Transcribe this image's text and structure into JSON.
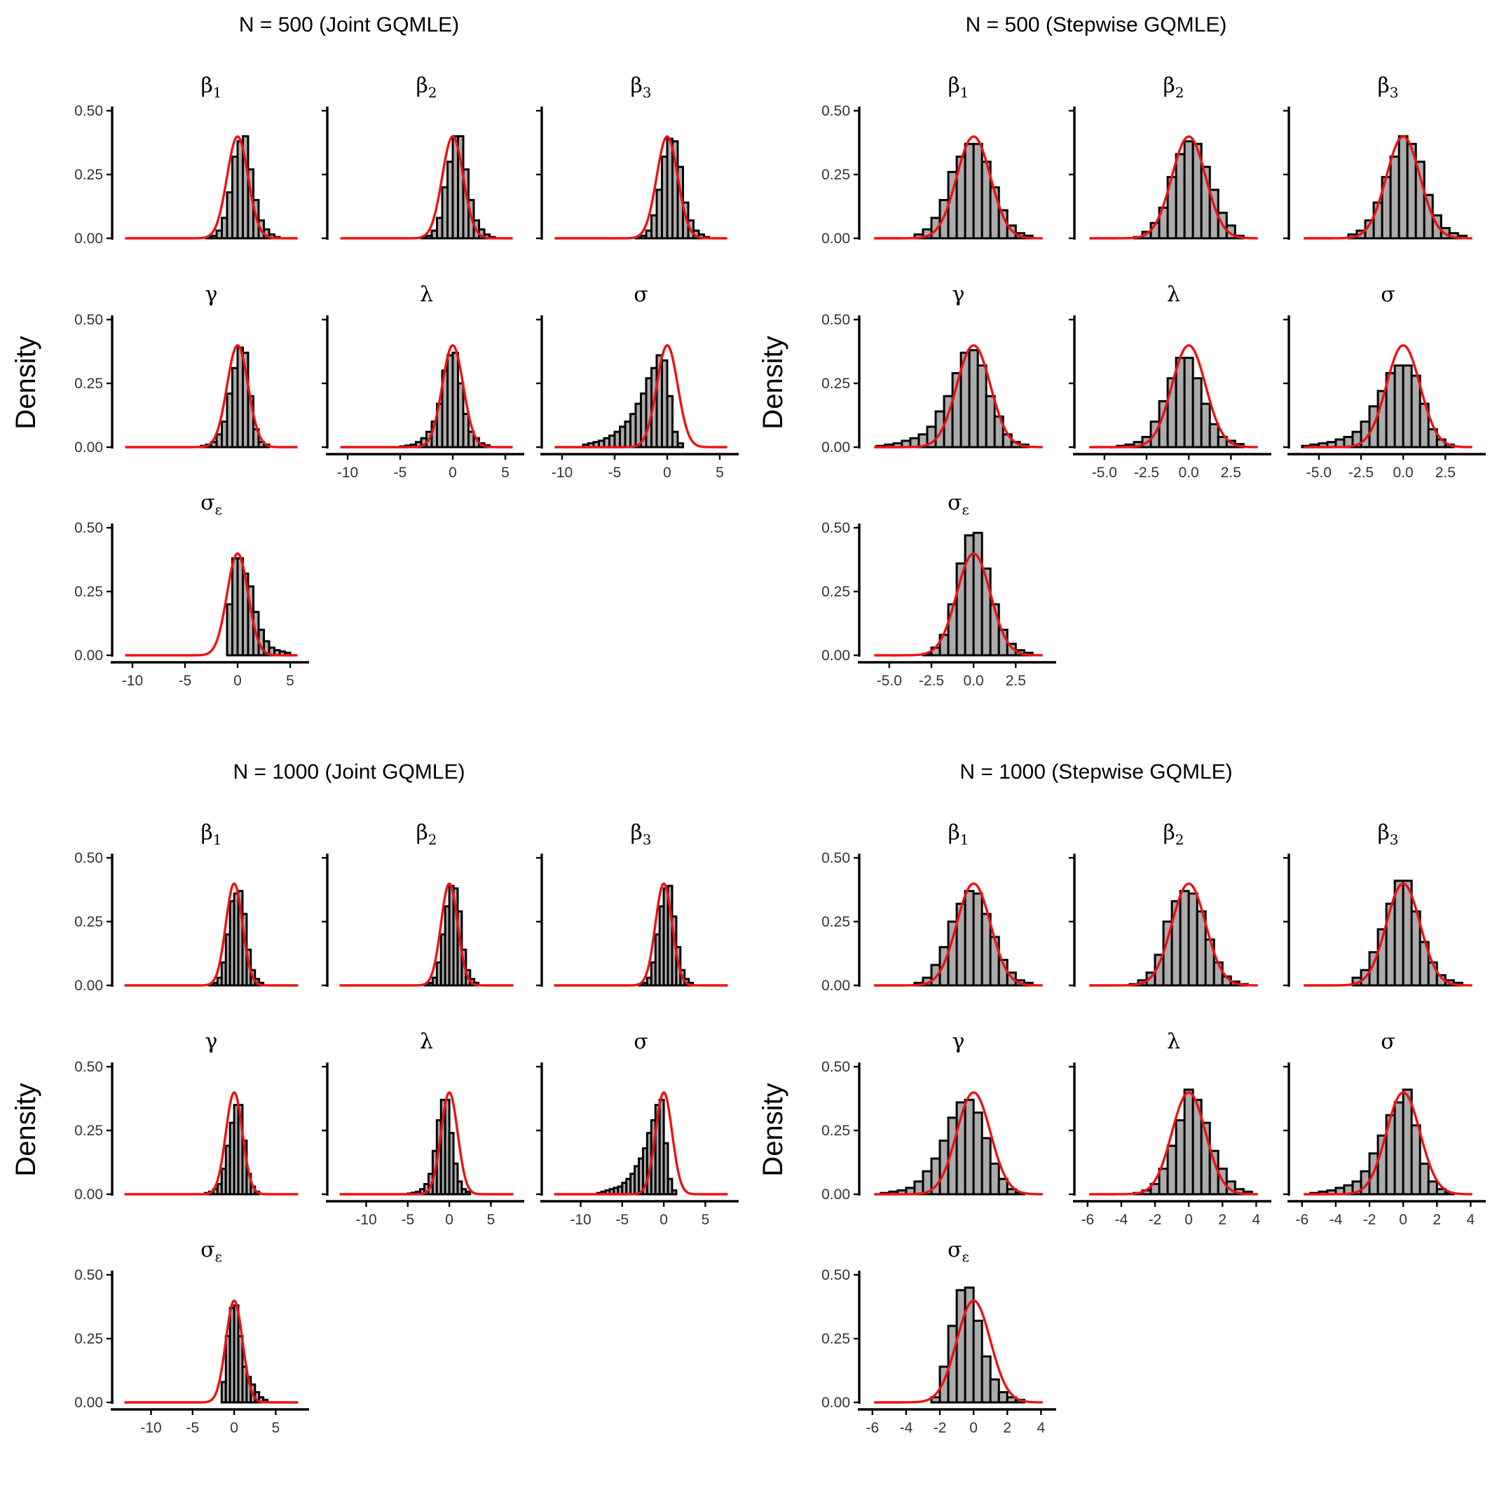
{
  "figure": {
    "y_axis_label": "Density"
  },
  "chart_data": [
    {
      "type": "histogram-grid",
      "title": "N = 500 (Joint GQMLE)",
      "ylabel": "Density",
      "xlim": [
        -11,
        6
      ],
      "ylim": [
        0,
        0.5
      ],
      "xticks": [
        "-10",
        "-5",
        "0",
        "5"
      ],
      "xtick_values": [
        -10,
        -5,
        0,
        5
      ],
      "yticks": [
        "0.00",
        "0.25",
        "0.50"
      ],
      "panels": [
        {
          "label": "β",
          "sub": "1",
          "bin_width": 0.5,
          "bin_start": -3,
          "counts": [
            0.003,
            0.01,
            0.03,
            0.08,
            0.18,
            0.32,
            0.38,
            0.4,
            0.27,
            0.15,
            0.07,
            0.035,
            0.015,
            0.005
          ]
        },
        {
          "label": "β",
          "sub": "2",
          "bin_width": 0.5,
          "bin_start": -3,
          "counts": [
            0.003,
            0.01,
            0.03,
            0.08,
            0.2,
            0.3,
            0.4,
            0.4,
            0.27,
            0.15,
            0.07,
            0.035,
            0.015,
            0.005
          ]
        },
        {
          "label": "β",
          "sub": "3",
          "bin_width": 0.5,
          "bin_start": -3,
          "counts": [
            0.003,
            0.01,
            0.03,
            0.09,
            0.19,
            0.32,
            0.39,
            0.38,
            0.28,
            0.14,
            0.07,
            0.03,
            0.015,
            0.005
          ]
        },
        {
          "label": "γ",
          "sub": "",
          "bin_width": 0.5,
          "bin_start": -3.5,
          "counts": [
            0.005,
            0.01,
            0.02,
            0.05,
            0.1,
            0.21,
            0.31,
            0.39,
            0.37,
            0.2,
            0.07,
            0.02,
            0.01
          ]
        },
        {
          "label": "λ",
          "sub": "",
          "bin_width": 0.5,
          "bin_start": -5,
          "counts": [
            0.003,
            0.006,
            0.01,
            0.02,
            0.035,
            0.06,
            0.1,
            0.17,
            0.3,
            0.36,
            0.37,
            0.25,
            0.13,
            0.06,
            0.035,
            0.015,
            0.007
          ]
        },
        {
          "label": "σ",
          "sub": "",
          "bin_width": 0.5,
          "bin_start": -8,
          "counts": [
            0.01,
            0.015,
            0.02,
            0.025,
            0.035,
            0.045,
            0.06,
            0.08,
            0.1,
            0.13,
            0.17,
            0.21,
            0.27,
            0.31,
            0.36,
            0.34,
            0.2,
            0.06,
            0.015
          ]
        },
        {
          "label": "σ",
          "sub": "ε",
          "bin_width": 0.5,
          "bin_start": -1,
          "counts": [
            0.2,
            0.38,
            0.38,
            0.32,
            0.27,
            0.17,
            0.1,
            0.055,
            0.03,
            0.02,
            0.015,
            0.01
          ]
        }
      ]
    },
    {
      "type": "histogram-grid",
      "title": "N = 500 (Stepwise GQMLE)",
      "ylabel": "Density",
      "xlim": [
        -6.2,
        4.4
      ],
      "ylim": [
        0,
        0.5
      ],
      "xticks": [
        "-5.0",
        "-2.5",
        "0.0",
        "2.5"
      ],
      "xtick_values": [
        -5,
        -2.5,
        0,
        2.5
      ],
      "yticks": [
        "0.00",
        "0.25",
        "0.50"
      ],
      "panels": [
        {
          "label": "β",
          "sub": "1",
          "bin_width": 0.5,
          "bin_start": -3.5,
          "counts": [
            0.015,
            0.035,
            0.08,
            0.15,
            0.26,
            0.32,
            0.37,
            0.37,
            0.3,
            0.2,
            0.11,
            0.05,
            0.02,
            0.01
          ]
        },
        {
          "label": "β",
          "sub": "2",
          "bin_width": 0.5,
          "bin_start": -3.25,
          "counts": [
            0.005,
            0.025,
            0.06,
            0.12,
            0.24,
            0.33,
            0.38,
            0.37,
            0.28,
            0.19,
            0.1,
            0.05,
            0.01
          ]
        },
        {
          "label": "β",
          "sub": "3",
          "bin_width": 0.5,
          "bin_start": -3.25,
          "counts": [
            0.015,
            0.03,
            0.07,
            0.14,
            0.24,
            0.32,
            0.4,
            0.37,
            0.3,
            0.17,
            0.09,
            0.04,
            0.02,
            0.01
          ]
        },
        {
          "label": "γ",
          "sub": "",
          "bin_width": 0.5,
          "bin_start": -5.75,
          "counts": [
            0.005,
            0.01,
            0.015,
            0.025,
            0.035,
            0.05,
            0.08,
            0.14,
            0.2,
            0.29,
            0.37,
            0.38,
            0.32,
            0.2,
            0.12,
            0.05,
            0.02,
            0.01
          ]
        },
        {
          "label": "λ",
          "sub": "",
          "bin_width": 0.5,
          "bin_start": -4.25,
          "counts": [
            0.005,
            0.01,
            0.02,
            0.04,
            0.1,
            0.18,
            0.27,
            0.35,
            0.35,
            0.27,
            0.17,
            0.09,
            0.04,
            0.025,
            0.012
          ]
        },
        {
          "label": "σ",
          "sub": "",
          "bin_width": 0.5,
          "bin_start": -6,
          "counts": [
            0.005,
            0.01,
            0.015,
            0.02,
            0.03,
            0.04,
            0.06,
            0.1,
            0.16,
            0.22,
            0.29,
            0.32,
            0.32,
            0.28,
            0.17,
            0.07,
            0.03,
            0.01
          ]
        },
        {
          "label": "σ",
          "sub": "ε",
          "bin_width": 0.5,
          "bin_start": -3,
          "counts": [
            0.005,
            0.03,
            0.08,
            0.2,
            0.36,
            0.47,
            0.48,
            0.34,
            0.2,
            0.1,
            0.045,
            0.02,
            0.01
          ]
        }
      ]
    },
    {
      "type": "histogram-grid",
      "title": "N = 1000 (Joint GQMLE)",
      "ylabel": "Density",
      "xlim": [
        -13.5,
        8
      ],
      "ylim": [
        0,
        0.5
      ],
      "xticks": [
        "-10",
        "-5",
        "0",
        "5"
      ],
      "xtick_values": [
        -10,
        -5,
        0,
        5
      ],
      "yticks": [
        "0.00",
        "0.25",
        "0.50"
      ],
      "panels": [
        {
          "label": "β",
          "sub": "1",
          "bin_width": 0.5,
          "bin_start": -3,
          "counts": [
            0.003,
            0.01,
            0.03,
            0.09,
            0.2,
            0.33,
            0.36,
            0.37,
            0.28,
            0.14,
            0.06,
            0.025,
            0.01
          ]
        },
        {
          "label": "β",
          "sub": "2",
          "bin_width": 0.5,
          "bin_start": -3,
          "counts": [
            0.003,
            0.01,
            0.03,
            0.09,
            0.2,
            0.31,
            0.39,
            0.38,
            0.29,
            0.14,
            0.06,
            0.025,
            0.01
          ]
        },
        {
          "label": "β",
          "sub": "3",
          "bin_width": 0.5,
          "bin_start": -3,
          "counts": [
            0.003,
            0.01,
            0.03,
            0.09,
            0.2,
            0.31,
            0.38,
            0.39,
            0.27,
            0.15,
            0.06,
            0.025,
            0.01
          ]
        },
        {
          "label": "γ",
          "sub": "",
          "bin_width": 0.5,
          "bin_start": -3.5,
          "counts": [
            0.005,
            0.01,
            0.02,
            0.04,
            0.1,
            0.19,
            0.28,
            0.35,
            0.35,
            0.21,
            0.08,
            0.03,
            0.01
          ]
        },
        {
          "label": "λ",
          "sub": "",
          "bin_width": 0.5,
          "bin_start": -5,
          "counts": [
            0.003,
            0.006,
            0.01,
            0.02,
            0.04,
            0.08,
            0.17,
            0.29,
            0.37,
            0.37,
            0.24,
            0.12,
            0.05,
            0.02,
            0.01
          ]
        },
        {
          "label": "σ",
          "sub": "",
          "bin_width": 0.5,
          "bin_start": -8,
          "counts": [
            0.005,
            0.01,
            0.015,
            0.02,
            0.025,
            0.03,
            0.045,
            0.06,
            0.08,
            0.11,
            0.14,
            0.18,
            0.24,
            0.29,
            0.35,
            0.37,
            0.2,
            0.06,
            0.015
          ]
        },
        {
          "label": "σ",
          "sub": "ε",
          "bin_width": 0.5,
          "bin_start": -1.5,
          "counts": [
            0.08,
            0.26,
            0.37,
            0.38,
            0.26,
            0.14,
            0.1,
            0.07,
            0.04,
            0.02,
            0.01
          ]
        }
      ]
    },
    {
      "type": "histogram-grid",
      "title": "N = 1000 (Stepwise GQMLE)",
      "ylabel": "Density",
      "xlim": [
        -6.2,
        4.4
      ],
      "ylim": [
        0,
        0.5
      ],
      "xticks": [
        "-6",
        "-4",
        "-2",
        "0",
        "2",
        "4"
      ],
      "xtick_values": [
        -6,
        -4,
        -2,
        0,
        2,
        4
      ],
      "yticks": [
        "0.00",
        "0.25",
        "0.50"
      ],
      "panels": [
        {
          "label": "β",
          "sub": "1",
          "bin_width": 0.5,
          "bin_start": -3.5,
          "counts": [
            0.01,
            0.03,
            0.08,
            0.15,
            0.25,
            0.32,
            0.37,
            0.36,
            0.28,
            0.19,
            0.1,
            0.05,
            0.02,
            0.01
          ]
        },
        {
          "label": "β",
          "sub": "2",
          "bin_width": 0.5,
          "bin_start": -3.5,
          "counts": [
            0.005,
            0.02,
            0.05,
            0.12,
            0.25,
            0.33,
            0.37,
            0.36,
            0.29,
            0.18,
            0.09,
            0.035,
            0.015,
            0.005
          ]
        },
        {
          "label": "β",
          "sub": "3",
          "bin_width": 0.5,
          "bin_start": -3,
          "counts": [
            0.03,
            0.06,
            0.13,
            0.22,
            0.32,
            0.41,
            0.41,
            0.29,
            0.17,
            0.09,
            0.04,
            0.02,
            0.01
          ]
        },
        {
          "label": "γ",
          "sub": "",
          "bin_width": 0.5,
          "bin_start": -5.5,
          "counts": [
            0.005,
            0.01,
            0.015,
            0.025,
            0.05,
            0.09,
            0.14,
            0.21,
            0.3,
            0.36,
            0.37,
            0.32,
            0.22,
            0.12,
            0.06,
            0.02,
            0.005
          ]
        },
        {
          "label": "λ",
          "sub": "",
          "bin_width": 0.5,
          "bin_start": -3.25,
          "counts": [
            0.005,
            0.015,
            0.04,
            0.1,
            0.19,
            0.29,
            0.41,
            0.37,
            0.28,
            0.17,
            0.1,
            0.05,
            0.02,
            0.01
          ]
        },
        {
          "label": "σ",
          "sub": "",
          "bin_width": 0.5,
          "bin_start": -5.5,
          "counts": [
            0.005,
            0.01,
            0.015,
            0.025,
            0.035,
            0.05,
            0.09,
            0.16,
            0.23,
            0.31,
            0.36,
            0.41,
            0.27,
            0.12,
            0.05,
            0.02,
            0.005
          ]
        },
        {
          "label": "σ",
          "sub": "ε",
          "bin_width": 0.5,
          "bin_start": -2.5,
          "counts": [
            0.02,
            0.14,
            0.3,
            0.44,
            0.45,
            0.32,
            0.18,
            0.09,
            0.04,
            0.02,
            0.01
          ]
        }
      ]
    }
  ]
}
